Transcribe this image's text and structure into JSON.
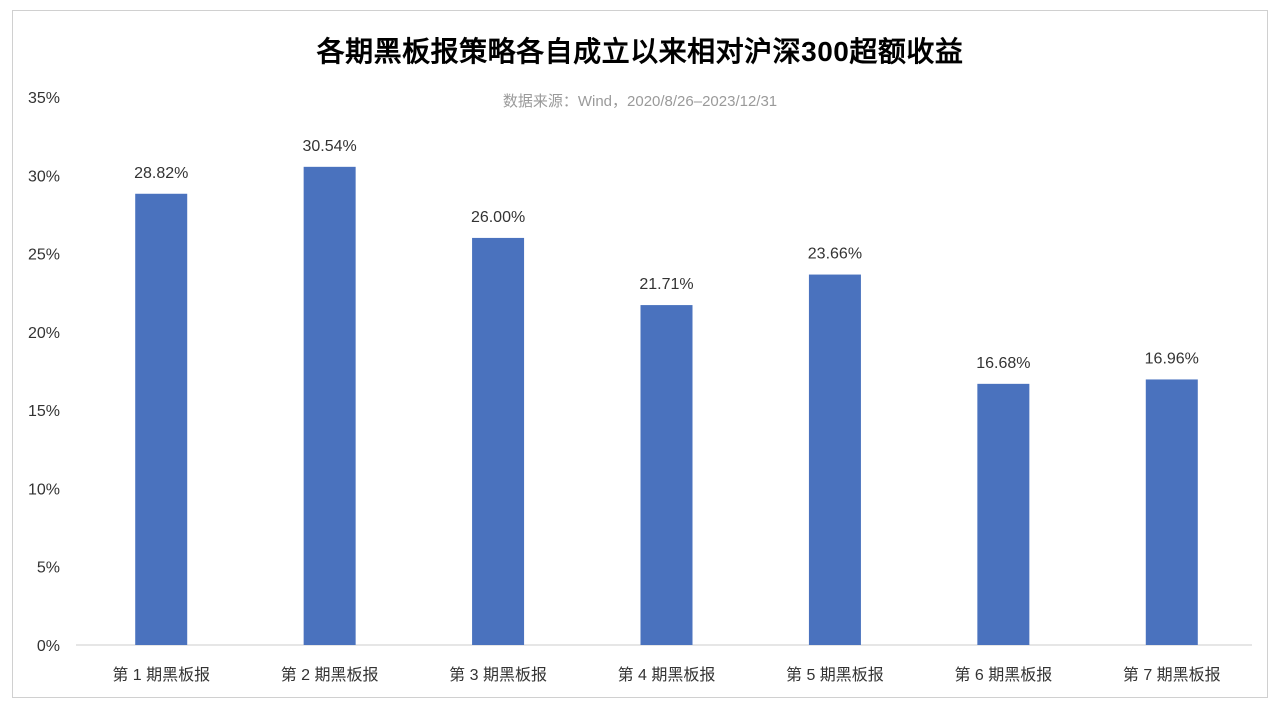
{
  "chart_data": {
    "type": "bar",
    "title": "各期黑板报策略各自成立以来相对沪深300超额收益",
    "subtitle": "数据来源：Wind，2020/8/26–2023/12/31",
    "categories": [
      "第 1 期黑板报",
      "第 2 期黑板报",
      "第 3 期黑板报",
      "第 4 期黑板报",
      "第 5 期黑板报",
      "第 6 期黑板报",
      "第 7 期黑板报"
    ],
    "values": [
      28.82,
      30.54,
      26.0,
      21.71,
      23.66,
      16.68,
      16.96
    ],
    "data_labels": [
      "28.82%",
      "30.54%",
      "26.00%",
      "21.71%",
      "23.66%",
      "16.68%",
      "16.96%"
    ],
    "y_ticks": [
      0,
      5,
      10,
      15,
      20,
      25,
      30,
      35
    ],
    "y_tick_labels": [
      "0%",
      "5%",
      "10%",
      "15%",
      "20%",
      "25%",
      "30%",
      "35%"
    ],
    "ylim": [
      0,
      35
    ],
    "grid": false,
    "legend": "none",
    "bar_color": "#4a72be",
    "axis_color": "#cccccc"
  }
}
